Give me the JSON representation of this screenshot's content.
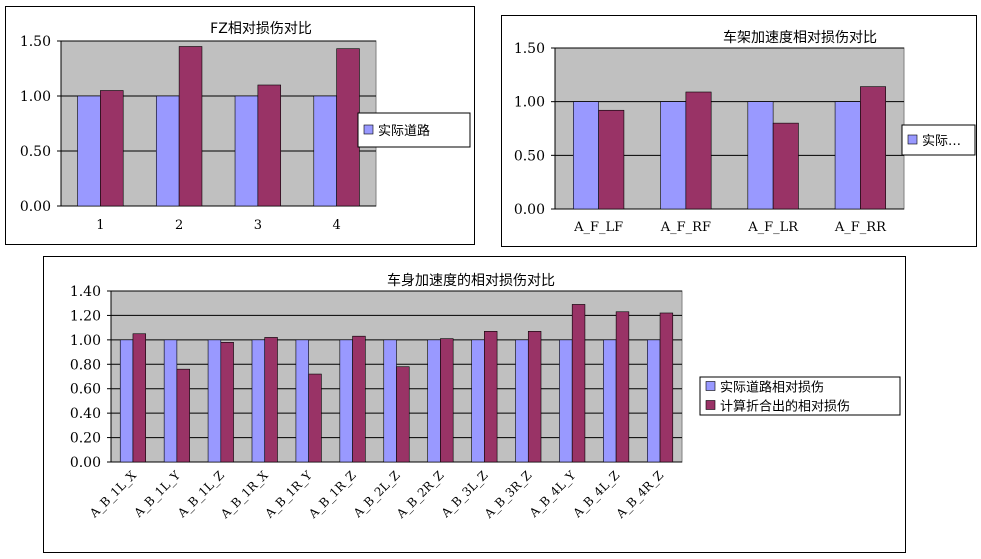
{
  "colors": {
    "series_a": "#9999ff",
    "series_b": "#993366",
    "plot_bg": "#c0c0c0",
    "grid": "#000000"
  },
  "chart_data": [
    {
      "type": "bar",
      "title": "FZ相对损伤对比",
      "categories": [
        "1",
        "2",
        "3",
        "4"
      ],
      "series": [
        {
          "name": "实际道路",
          "values": [
            1.0,
            1.0,
            1.0,
            1.0
          ]
        },
        {
          "values": [
            1.05,
            1.45,
            1.1,
            1.43
          ]
        }
      ],
      "yticks": [
        "0.00",
        "0.50",
        "1.00",
        "1.50"
      ],
      "ylim": [
        0,
        1.5
      ],
      "grid": true,
      "legend": "right"
    },
    {
      "type": "bar",
      "title": "车架加速度相对损伤对比",
      "categories": [
        "A_F_LF",
        "A_F_RF",
        "A_F_LR",
        "A_F_RR"
      ],
      "series": [
        {
          "name": "实际…",
          "values": [
            1.0,
            1.0,
            1.0,
            1.0
          ]
        },
        {
          "values": [
            0.92,
            1.09,
            0.8,
            1.14
          ]
        }
      ],
      "yticks": [
        "0.00",
        "0.50",
        "1.00",
        "1.50"
      ],
      "ylim": [
        0,
        1.5
      ],
      "grid": true,
      "legend": "right"
    },
    {
      "type": "bar",
      "title": "车身加速度的相对损伤对比",
      "categories": [
        "A_B_1L_X",
        "A_B_1L_Y",
        "A_B_1L_Z",
        "A_B_1R_X",
        "A_B_1R_Y",
        "A_B_1R_Z",
        "A_B_2L_Z",
        "A_B_2R_Z",
        "A_B_3L_Z",
        "A_B_3R_Z",
        "A_B_4L_Y",
        "A_B_4L_Z",
        "A_B_4R_Z"
      ],
      "series": [
        {
          "name": "实际道路相对损伤",
          "values": [
            1.0,
            1.0,
            1.0,
            1.0,
            1.0,
            1.0,
            1.0,
            1.0,
            1.0,
            1.0,
            1.0,
            1.0,
            1.0
          ]
        },
        {
          "name": "计算折合出的相对损伤",
          "values": [
            1.05,
            0.76,
            0.98,
            1.02,
            0.72,
            1.03,
            0.78,
            1.01,
            1.07,
            1.07,
            1.29,
            1.23,
            1.22
          ]
        }
      ],
      "yticks": [
        "0.00",
        "0.20",
        "0.40",
        "0.60",
        "0.80",
        "1.00",
        "1.20",
        "1.40"
      ],
      "ylim": [
        0,
        1.4
      ],
      "grid": true,
      "legend": "right"
    }
  ]
}
